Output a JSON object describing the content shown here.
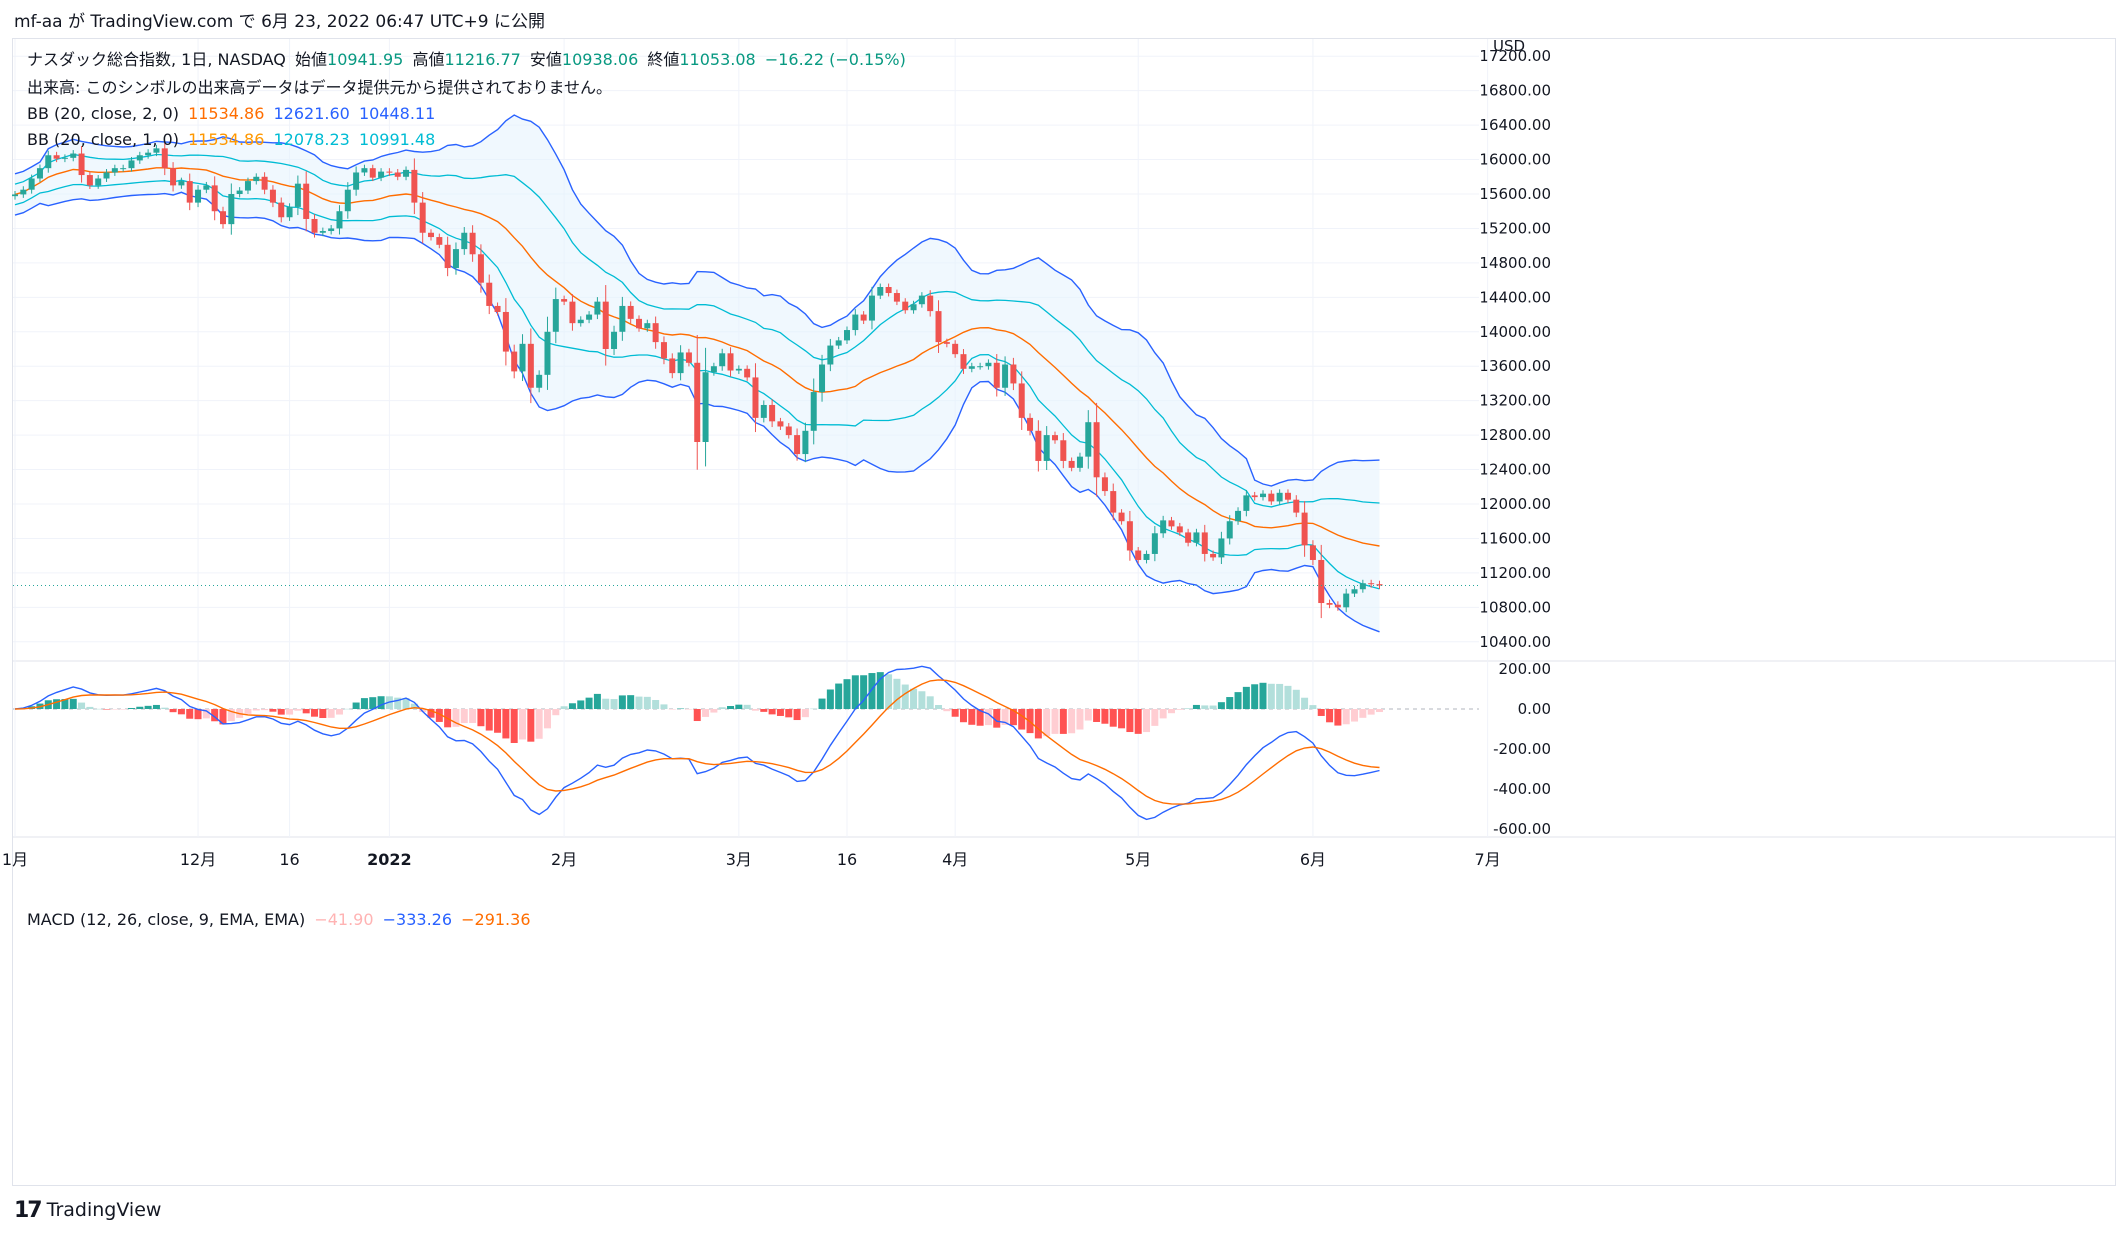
{
  "header": {
    "publisher": "mf-aa",
    "text": "mf-aa が TradingView.com で 6月 23, 2022 06:47 UTC+9 に公開"
  },
  "legend": {
    "symbol": "ナスダック総合指数, 1日, NASDAQ",
    "open_label": "始値",
    "open": "10941.95",
    "high_label": "高値",
    "high": "11216.77",
    "low_label": "安値",
    "low": "10938.06",
    "close_label": "終値",
    "close": "11053.08",
    "change": "−16.22 (−0.15%)",
    "volume_note": "出来高: このシンボルの出来高データはデータ提供元から提供されておりません。",
    "bb1_label": "BB (20, close, 2, 0)",
    "bb1_basis": "11534.86",
    "bb1_upper": "12621.60",
    "bb1_lower": "10448.11",
    "bb2_label": "BB (20, close, 1, 0)",
    "bb2_basis": "11534.86",
    "bb2_upper": "12078.23",
    "bb2_lower": "10991.48",
    "macd_label": "MACD (12, 26, close, 9, EMA, EMA)",
    "macd_hist": "−41.90",
    "macd_line": "−333.26",
    "macd_signal": "−291.36"
  },
  "footer": {
    "logo": "17",
    "brand": "TradingView"
  },
  "colors": {
    "up": "#26a69a",
    "down": "#ef5350",
    "bb_outer": "#2962ff",
    "bb_inner": "#00bcd4",
    "basis": "#ff6d00",
    "fill": "#e3f2fd",
    "macd": "#2962ff",
    "signal": "#ff6d00",
    "hist_up_strong": "#26a69a",
    "hist_up_weak": "#b2dfdb",
    "hist_down_strong": "#ff5252",
    "hist_down_weak": "#ffcdd2",
    "grid": "#f0f3fa",
    "axis_text": "#131722"
  },
  "chart_data": [
    {
      "type": "candlestick",
      "title": "ナスダック総合指数, 1日, NASDAQ",
      "currency": "USD",
      "ylim": [
        10200,
        17400
      ],
      "y_ticks": [
        10400,
        10800,
        11200,
        11600,
        12000,
        12400,
        12800,
        13200,
        13600,
        14000,
        14400,
        14800,
        15200,
        15600,
        16000,
        16400,
        16800,
        17200
      ],
      "x_ticks": [
        "1月",
        "12月",
        "16",
        "2022",
        "2月",
        "3月",
        "16",
        "4月",
        "5月",
        "6月",
        "7月"
      ],
      "last_price": 11053.08,
      "close_series": [
        15595,
        15650,
        15780,
        15900,
        16050,
        16010,
        16020,
        16070,
        15820,
        15700,
        15780,
        15850,
        15900,
        15900,
        15990,
        16050,
        16080,
        16130,
        15900,
        15700,
        15750,
        15500,
        15650,
        15700,
        15400,
        15250,
        15600,
        15640,
        15750,
        15800,
        15650,
        15500,
        15330,
        15450,
        15720,
        15310,
        15150,
        15170,
        15200,
        15400,
        15650,
        15850,
        15900,
        15790,
        15860,
        15850,
        15800,
        15880,
        15500,
        15150,
        15100,
        15010,
        14740,
        14960,
        15150,
        14900,
        14570,
        14300,
        14230,
        13770,
        13540,
        13860,
        13350,
        13500,
        14000,
        14380,
        14350,
        14100,
        14140,
        14200,
        14350,
        13800,
        14000,
        14300,
        14150,
        14040,
        14100,
        13880,
        13690,
        13520,
        13760,
        13640,
        12720,
        13530,
        13600,
        13750,
        13550,
        13570,
        13470,
        13000,
        13150,
        12960,
        12900,
        12800,
        12580,
        12850,
        13300,
        13620,
        13840,
        13900,
        14020,
        14200,
        14130,
        14420,
        14520,
        14450,
        14350,
        14250,
        14320,
        14420,
        14240,
        13880,
        13860,
        13740,
        13570,
        13600,
        13600,
        13640,
        13350,
        13620,
        13400,
        13000,
        12850,
        12500,
        12800,
        12740,
        12500,
        12420,
        12550,
        12950,
        12310,
        12150,
        11900,
        11800,
        11460,
        11350,
        11420,
        11660,
        11810,
        11740,
        11670,
        11550,
        11670,
        11420,
        11380,
        11600,
        11800,
        11920,
        12100,
        12080,
        12120,
        12030,
        12130,
        12050,
        11900,
        11520,
        11350,
        10850,
        10830,
        10800,
        10960,
        11010,
        11080,
        11069,
        11053
      ],
      "bb_2sd": {
        "upper_last": 12621.6,
        "basis_last": 11534.86,
        "lower_last": 10448.11
      },
      "bb_1sd": {
        "upper_last": 12078.23,
        "basis_last": 11534.86,
        "lower_last": 10991.48
      }
    },
    {
      "type": "line+histogram",
      "title": "MACD (12, 26, close, 9, EMA, EMA)",
      "ylim": [
        -640,
        240
      ],
      "y_ticks": [
        200,
        0,
        -200,
        -400,
        -600
      ],
      "last": {
        "histogram": -41.9,
        "macd": -333.26,
        "signal": -291.36
      }
    }
  ]
}
